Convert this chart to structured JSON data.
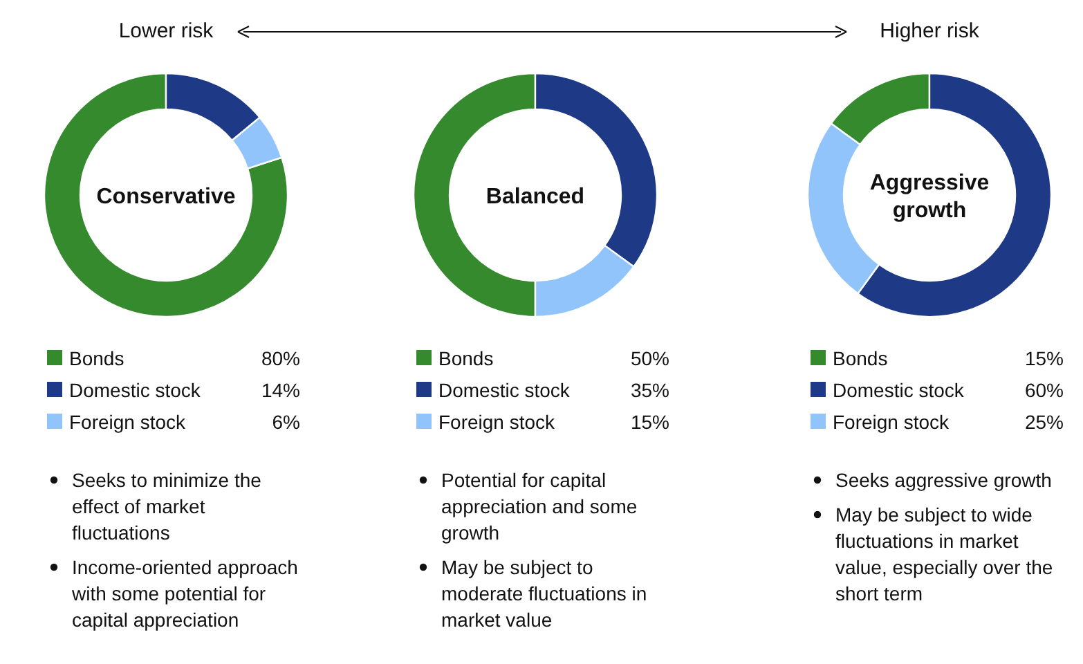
{
  "chart_data": [
    {
      "type": "donut",
      "title": "Conservative",
      "subtitle": "Lower risk",
      "categories": [
        "Bonds",
        "Domestic stock",
        "Foreign stock"
      ],
      "values": [
        80,
        14,
        6
      ],
      "value_labels": [
        "80%",
        "14%",
        "6%"
      ],
      "colors": [
        "#368a2e",
        "#1e3a87",
        "#90c4fb"
      ],
      "legend": "bottom",
      "annotations": [
        "Seeks to minimize the effect of market fluctuations",
        "Income-oriented approach with some potential for capital appreciation"
      ]
    },
    {
      "type": "donut",
      "title": "Balanced",
      "categories": [
        "Bonds",
        "Domestic stock",
        "Foreign stock"
      ],
      "values": [
        50,
        35,
        15
      ],
      "value_labels": [
        "50%",
        "35%",
        "15%"
      ],
      "colors": [
        "#368a2e",
        "#1e3a87",
        "#90c4fb"
      ],
      "legend": "bottom",
      "annotations": [
        "Potential for capital appreciation and some growth",
        "May be subject to moderate fluctuations in market value"
      ]
    },
    {
      "type": "donut",
      "title": "Aggressive growth",
      "subtitle": "Higher risk",
      "categories": [
        "Bonds",
        "Domestic stock",
        "Foreign stock"
      ],
      "values": [
        15,
        60,
        25
      ],
      "value_labels": [
        "15%",
        "60%",
        "25%"
      ],
      "colors": [
        "#368a2e",
        "#1e3a87",
        "#90c4fb"
      ],
      "legend": "bottom",
      "annotations": [
        "Seeks aggressive growth",
        "May be subject to wide fluctuations in market value, especially over the short term"
      ]
    }
  ]
}
